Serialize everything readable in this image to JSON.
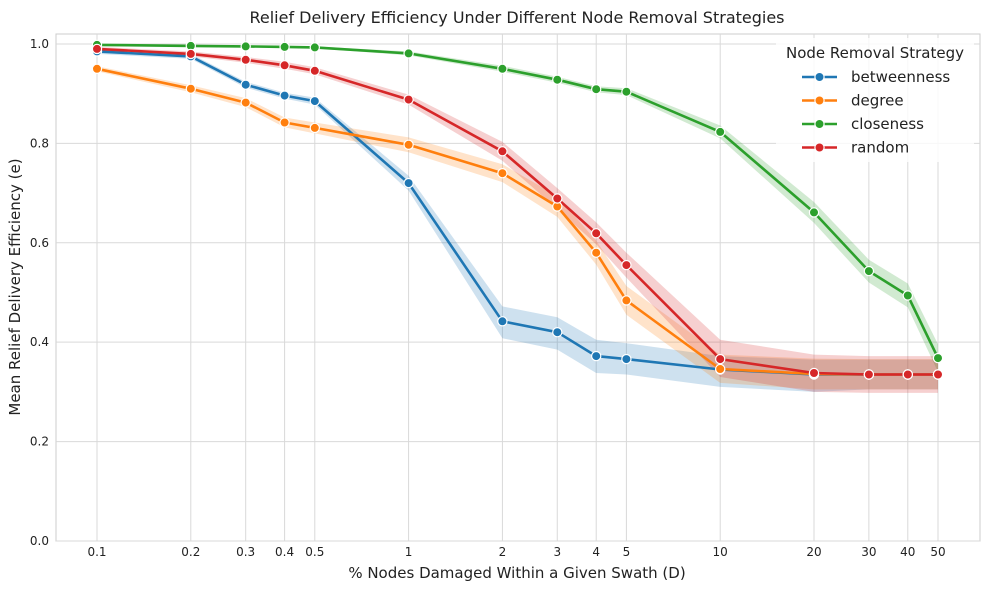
{
  "chart_data": {
    "type": "line",
    "title": "Relief Delivery Efficiency Under Different Node Removal Strategies",
    "xlabel": "% Nodes Damaged Within a Given Swath (D)",
    "ylabel": "Mean Relief Delivery Efficiency (e)",
    "x_scale": "log",
    "x_ticks": [
      0.1,
      0.2,
      0.3,
      0.4,
      0.5,
      1,
      2,
      3,
      4,
      5,
      10,
      20,
      30,
      40,
      50
    ],
    "x_tick_labels": [
      "0.1",
      "0.2",
      "0.3",
      "0.4",
      "0.5",
      "1",
      "2",
      "3",
      "4",
      "5",
      "10",
      "20",
      "30",
      "40",
      "50"
    ],
    "y_ticks": [
      0.0,
      0.2,
      0.4,
      0.6,
      0.8,
      1.0
    ],
    "y_tick_labels": [
      "0.0",
      "0.2",
      "0.4",
      "0.6",
      "0.8",
      "1.0"
    ],
    "ylim": [
      0.0,
      1.02
    ],
    "grid": true,
    "legend": {
      "title": "Node Removal Strategy",
      "placement": "top-right"
    },
    "series": [
      {
        "name": "betweenness",
        "color": "#1f77b4",
        "x": [
          0.1,
          0.2,
          0.3,
          0.4,
          0.5,
          1,
          2,
          3,
          4,
          5,
          10,
          20,
          30,
          40,
          50
        ],
        "values": [
          0.985,
          0.975,
          0.918,
          0.896,
          0.885,
          0.72,
          0.442,
          0.42,
          0.372,
          0.366,
          0.345,
          0.335,
          0.335,
          0.335,
          0.335
        ],
        "ci_lower": [
          0.98,
          0.97,
          0.912,
          0.89,
          0.878,
          0.705,
          0.408,
          0.385,
          0.338,
          0.335,
          0.31,
          0.3,
          0.305,
          0.305,
          0.305
        ],
        "ci_upper": [
          0.99,
          0.98,
          0.924,
          0.902,
          0.892,
          0.735,
          0.472,
          0.45,
          0.405,
          0.398,
          0.372,
          0.365,
          0.365,
          0.365,
          0.365
        ]
      },
      {
        "name": "degree",
        "color": "#ff7f0e",
        "x": [
          0.1,
          0.2,
          0.3,
          0.4,
          0.5,
          1,
          2,
          3,
          4,
          5,
          10,
          20,
          30,
          40,
          50
        ],
        "values": [
          0.95,
          0.91,
          0.882,
          0.842,
          0.831,
          0.797,
          0.74,
          0.673,
          0.58,
          0.484,
          0.346,
          0.336,
          0.335,
          0.335,
          0.335
        ],
        "ci_lower": [
          0.945,
          0.903,
          0.873,
          0.832,
          0.82,
          0.782,
          0.722,
          0.652,
          0.556,
          0.455,
          0.318,
          0.305,
          0.305,
          0.305,
          0.305
        ],
        "ci_upper": [
          0.955,
          0.917,
          0.891,
          0.852,
          0.842,
          0.812,
          0.758,
          0.694,
          0.604,
          0.513,
          0.375,
          0.367,
          0.366,
          0.366,
          0.366
        ]
      },
      {
        "name": "closeness",
        "color": "#2ca02c",
        "x": [
          0.1,
          0.2,
          0.3,
          0.4,
          0.5,
          1,
          2,
          3,
          4,
          5,
          10,
          20,
          30,
          40,
          50
        ],
        "values": [
          0.998,
          0.996,
          0.995,
          0.994,
          0.993,
          0.981,
          0.95,
          0.928,
          0.909,
          0.904,
          0.823,
          0.661,
          0.543,
          0.494,
          0.368
        ],
        "ci_lower": [
          0.997,
          0.995,
          0.994,
          0.993,
          0.991,
          0.977,
          0.944,
          0.922,
          0.903,
          0.897,
          0.81,
          0.64,
          0.52,
          0.47,
          0.34
        ],
        "ci_upper": [
          0.999,
          0.997,
          0.996,
          0.995,
          0.995,
          0.985,
          0.956,
          0.934,
          0.915,
          0.911,
          0.836,
          0.682,
          0.566,
          0.518,
          0.396
        ]
      },
      {
        "name": "random",
        "color": "#d62728",
        "x": [
          0.1,
          0.2,
          0.3,
          0.4,
          0.5,
          1,
          2,
          3,
          4,
          5,
          10,
          20,
          30,
          40,
          50
        ],
        "values": [
          0.99,
          0.98,
          0.968,
          0.957,
          0.946,
          0.888,
          0.784,
          0.689,
          0.619,
          0.555,
          0.366,
          0.338,
          0.335,
          0.335,
          0.335
        ],
        "ci_lower": [
          0.986,
          0.975,
          0.962,
          0.95,
          0.939,
          0.878,
          0.765,
          0.668,
          0.597,
          0.53,
          0.33,
          0.3,
          0.298,
          0.298,
          0.298
        ],
        "ci_upper": [
          0.994,
          0.985,
          0.974,
          0.964,
          0.953,
          0.898,
          0.803,
          0.71,
          0.641,
          0.58,
          0.405,
          0.375,
          0.372,
          0.372,
          0.372
        ]
      }
    ]
  }
}
